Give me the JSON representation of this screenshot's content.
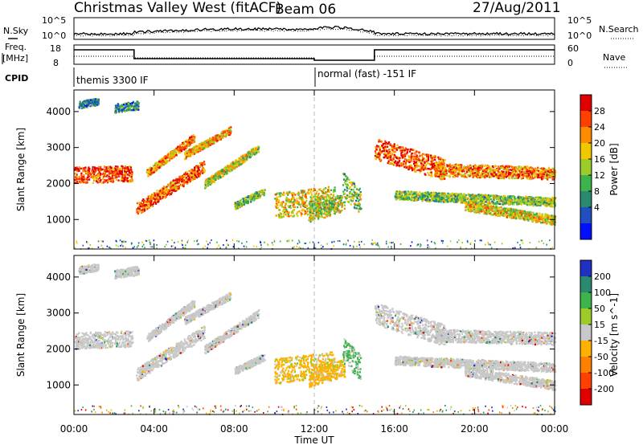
{
  "header": {
    "title": "Christmas Valley West (fitACF)",
    "beam": "Beam 06",
    "date": "27/Aug/2011"
  },
  "strips": {
    "nsky_label": "N.Sky",
    "nsky_ticks": [
      "10^5",
      "10^0"
    ],
    "nsearch_label": "N.Search",
    "nsearch_ticks": [
      "10^5",
      "10^0"
    ],
    "freq_label_1": "Freq.",
    "freq_label_2": "[MHz]",
    "freq_ticks": [
      "18",
      "8"
    ],
    "nave_label": "Nave",
    "nave_ticks": [
      "60",
      "0"
    ],
    "cpid_label": "CPID",
    "cpid_segments": [
      "themis 3300 IF",
      "normal (fast) -151 IF"
    ]
  },
  "chart_data": [
    {
      "type": "heatmap",
      "title": "",
      "ylabel": "Slant Range [km]",
      "xlabel": "",
      "x_ticks": [
        "00:00",
        "04:00",
        "08:00",
        "12:00",
        "16:00",
        "20:00",
        "00:00"
      ],
      "y_ticks": [
        "1000",
        "2000",
        "3000",
        "4000"
      ],
      "ylim": [
        180,
        4600
      ],
      "xlim_hours": [
        0,
        24
      ],
      "colorbar": {
        "label": "Power [dB]",
        "ticks": [
          "4",
          "8",
          "12",
          "16",
          "20",
          "24",
          "28"
        ],
        "range": [
          0,
          30
        ],
        "colors": [
          "#0010ff",
          "#2050c0",
          "#2a8a70",
          "#3cb44b",
          "#9ccc2a",
          "#f0c800",
          "#ff8c00",
          "#ff4000",
          "#e00000"
        ]
      }
    },
    {
      "type": "heatmap",
      "title": "",
      "ylabel": "Slant Range [km]",
      "xlabel": "Time UT",
      "x_ticks": [
        "00:00",
        "04:00",
        "08:00",
        "12:00",
        "16:00",
        "20:00",
        "00:00"
      ],
      "y_ticks": [
        "1000",
        "2000",
        "3000",
        "4000"
      ],
      "ylim": [
        180,
        4600
      ],
      "xlim_hours": [
        0,
        24
      ],
      "colorbar": {
        "label": "Velocity [m s^-1]",
        "ticks": [
          "200",
          "100",
          "50",
          "15",
          "-15",
          "-50",
          "-100",
          "-200"
        ],
        "colors": [
          "#2030c0",
          "#2a8a70",
          "#3cb44b",
          "#9ccc2a",
          "#c8c8c8",
          "#ffb000",
          "#ff8000",
          "#ff4000",
          "#e00000"
        ]
      }
    }
  ]
}
